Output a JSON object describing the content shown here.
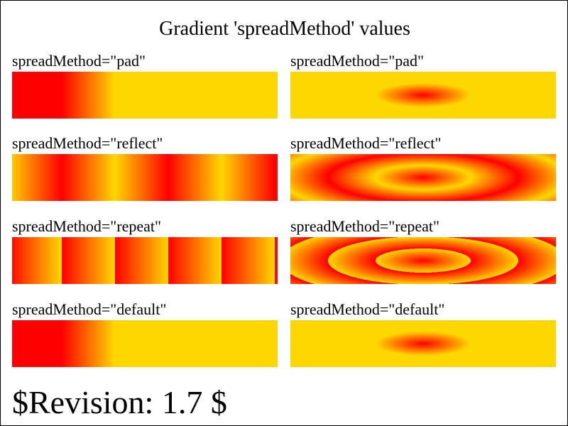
{
  "title": "Gradient 'spreadMethod' values",
  "revision": "$Revision: 1.7 $",
  "colors": {
    "start": "#ff0000",
    "end": "#ffd700",
    "border": "#000000",
    "background": "#ffffff"
  },
  "rows": [
    {
      "linear": {
        "label": "spreadMethod=\"pad\"",
        "spread": "pad"
      },
      "radial": {
        "label": "spreadMethod=\"pad\"",
        "spread": "pad"
      }
    },
    {
      "linear": {
        "label": "spreadMethod=\"reflect\"",
        "spread": "reflect"
      },
      "radial": {
        "label": "spreadMethod=\"reflect\"",
        "spread": "reflect"
      }
    },
    {
      "linear": {
        "label": "spreadMethod=\"repeat\"",
        "spread": "repeat"
      },
      "radial": {
        "label": "spreadMethod=\"repeat\"",
        "spread": "repeat"
      }
    },
    {
      "linear": {
        "label": "spreadMethod=\"default\"",
        "spread": "default"
      },
      "radial": {
        "label": "spreadMethod=\"default\"",
        "spread": "default"
      }
    }
  ]
}
